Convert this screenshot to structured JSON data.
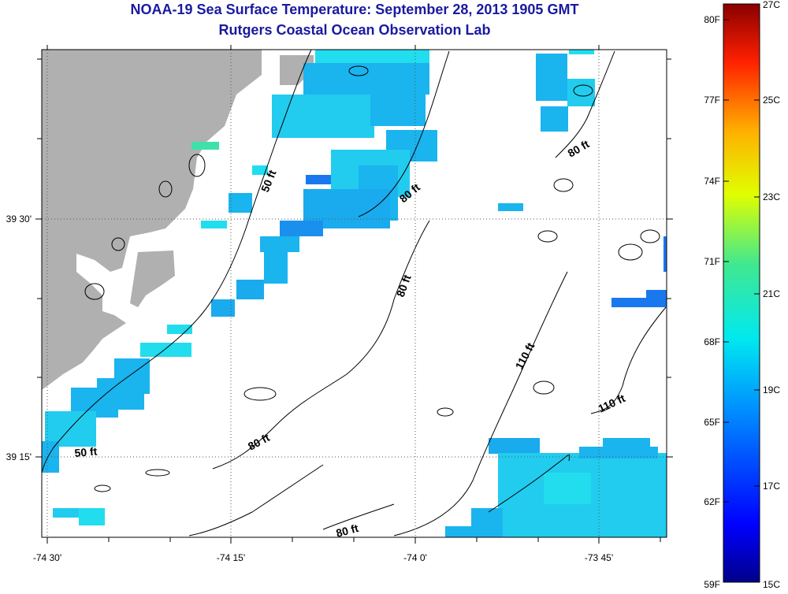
{
  "title": "NOAA-19 Sea Surface Temperature:  September 28, 2013 1905 GMT",
  "subtitle": "Rutgers Coastal Ocean Observation Lab",
  "colors": {
    "land": "#b0b0b0",
    "sst_light": "#22ddee",
    "sst_mid": "#1ab4ee",
    "sst_dark": "#1a78ee"
  },
  "map": {
    "lon_labels": [
      "-74 30'",
      "-74 15'",
      "-74 0'",
      "-73 45'"
    ],
    "lat_labels": [
      "39 30'",
      "39 15'"
    ],
    "contour_labels": [
      "50 ft",
      "50 ft",
      "80 ft",
      "80 ft",
      "80 ft",
      "80 ft",
      "80 ft",
      "110 ft",
      "110 ft"
    ]
  },
  "colorbar": {
    "fahrenheit_labels": [
      "80F",
      "77F",
      "74F",
      "71F",
      "68F",
      "65F",
      "62F",
      "59F"
    ],
    "celsius_labels": [
      "27C",
      "25C",
      "23C",
      "21C",
      "19C",
      "17C",
      "15C"
    ],
    "min_c": 15,
    "max_c": 27
  }
}
